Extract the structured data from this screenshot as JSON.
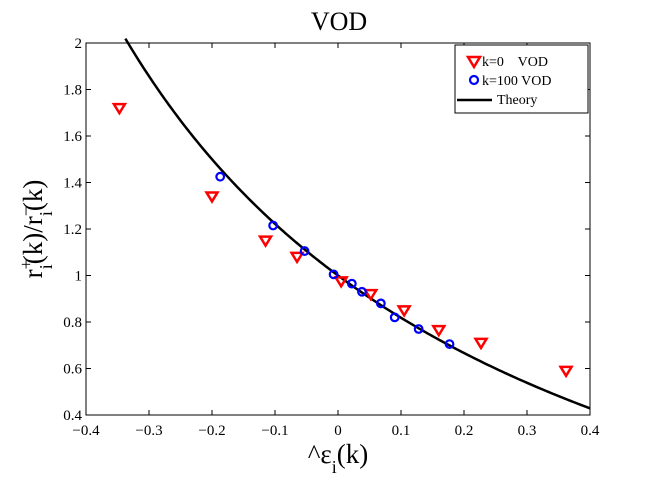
{
  "chart_data": {
    "type": "scatter",
    "title": "VOD",
    "xlabel": "^εi(k)",
    "ylabel": "ri+(k)/ri−(k)",
    "xlim": [
      -0.4,
      0.4
    ],
    "ylim": [
      0.4,
      2.0
    ],
    "x_ticks": [
      -0.4,
      -0.3,
      -0.2,
      -0.1,
      0,
      0.1,
      0.2,
      0.3,
      0.4
    ],
    "x_tick_labels": [
      "−0.4",
      "−0.3",
      "−0.2",
      "−0.1",
      "0",
      "0.1",
      "0.2",
      "0.3",
      "0.4"
    ],
    "y_ticks": [
      0.4,
      0.6,
      0.8,
      1.0,
      1.2,
      1.4,
      1.6,
      1.8,
      2.0
    ],
    "y_tick_labels": [
      "0.4",
      "0.6",
      "0.8",
      "1",
      "1.2",
      "1.4",
      "1.6",
      "1.8",
      "2"
    ],
    "legend_position": "top-right",
    "series": [
      {
        "name": "k=0    VOD",
        "marker": "triangle-down",
        "color": "#ff0000",
        "points": [
          [
            -0.347,
            1.72
          ],
          [
            -0.2,
            1.34
          ],
          [
            -0.115,
            1.15
          ],
          [
            -0.065,
            1.08
          ],
          [
            0.005,
            0.975
          ],
          [
            0.052,
            0.92
          ],
          [
            0.105,
            0.85
          ],
          [
            0.16,
            0.765
          ],
          [
            0.227,
            0.71
          ],
          [
            0.362,
            0.59
          ]
        ]
      },
      {
        "name": "k=100 VOD",
        "marker": "circle",
        "color": "#0000ff",
        "points": [
          [
            -0.187,
            1.425
          ],
          [
            -0.103,
            1.215
          ],
          [
            -0.053,
            1.105
          ],
          [
            -0.007,
            1.005
          ],
          [
            0.022,
            0.965
          ],
          [
            0.038,
            0.93
          ],
          [
            0.068,
            0.88
          ],
          [
            0.09,
            0.82
          ],
          [
            0.128,
            0.77
          ],
          [
            0.177,
            0.705
          ]
        ]
      },
      {
        "name": "Theory",
        "marker": "line",
        "color": "#000000",
        "curve": {
          "formula": "(1 - x) / (1 + x)",
          "x_start": -0.3375,
          "x_end": 0.4
        }
      }
    ]
  }
}
